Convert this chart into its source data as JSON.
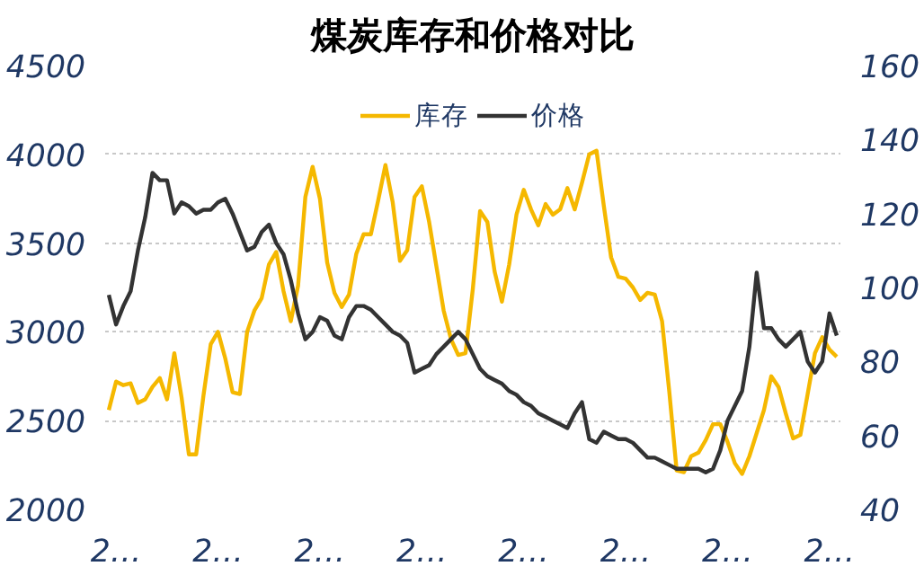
{
  "chart_data": {
    "type": "line",
    "title": "煤炭库存和价格对比",
    "categories": [
      null,
      "2…",
      null,
      null,
      null,
      null,
      null,
      null,
      null,
      null,
      null,
      null,
      null,
      null,
      null,
      "2…",
      null,
      null,
      null,
      null,
      null,
      null,
      null,
      null,
      null,
      null,
      null,
      null,
      null,
      "2…",
      null,
      null,
      null,
      null,
      null,
      null,
      null,
      null,
      null,
      null,
      null,
      null,
      null,
      "2…",
      null,
      null,
      null,
      null,
      null,
      null,
      null,
      null,
      null,
      null,
      null,
      null,
      null,
      "2…",
      null,
      null,
      null,
      null,
      null,
      null,
      null,
      null,
      null,
      null,
      null,
      null,
      null,
      "2…",
      null,
      null,
      null,
      null,
      null,
      null,
      null,
      null,
      null,
      null,
      null,
      null,
      null,
      "2…",
      null,
      null,
      null,
      null,
      null,
      null,
      null,
      null,
      null,
      null,
      null,
      null,
      null,
      "2…",
      null
    ],
    "ylim": [
      2000,
      4500
    ],
    "yticks": [
      2000,
      2500,
      3000,
      3500,
      4000,
      4500
    ],
    "y2lim": [
      40,
      160
    ],
    "y2ticks": [
      40,
      60,
      80,
      100,
      120,
      140,
      160
    ],
    "grid": "y",
    "legend": "top",
    "line_style": "solid",
    "series": [
      {
        "name": "库存",
        "color": "#f5b800",
        "values": [
          2560,
          2720,
          2700,
          2710,
          2600,
          2620,
          2690,
          2740,
          2620,
          2880,
          2630,
          2310,
          2310,
          2640,
          2930,
          3000,
          2850,
          2660,
          2650,
          3000,
          3120,
          3190,
          3380,
          3450,
          3230,
          3060,
          3260,
          3760,
          3930,
          3750,
          3390,
          3220,
          3140,
          3210,
          3440,
          3550,
          3550,
          3740,
          3940,
          3730,
          3400,
          3460,
          3760,
          3820,
          3620,
          3370,
          3120,
          2960,
          2870,
          2880,
          3240,
          3680,
          3620,
          3340,
          3170,
          3380,
          3660,
          3800,
          3690,
          3600,
          3720,
          3660,
          3690,
          3810,
          3690,
          3840,
          4000,
          4020,
          3710,
          3420,
          3310,
          3300,
          3250,
          3180,
          3220,
          3210,
          3060,
          2660,
          2220,
          2210,
          2300,
          2320,
          2390,
          2480,
          2480,
          2380,
          2260,
          2200,
          2300,
          2430,
          2560,
          2750,
          2690,
          2540,
          2400,
          2420,
          2650,
          2880,
          2970,
          2900,
          2860
        ]
      },
      {
        "name": "价格",
        "color": "#333333",
        "axis": "y2",
        "values": [
          98,
          90,
          95,
          99,
          110,
          119,
          131,
          129,
          129,
          120,
          123,
          122,
          120,
          121,
          121,
          123,
          124,
          120,
          115,
          110,
          111,
          115,
          117,
          112,
          109,
          102,
          93,
          86,
          88,
          92,
          91,
          87,
          86,
          92,
          95,
          95,
          94,
          92,
          90,
          88,
          87,
          85,
          77,
          78,
          79,
          82,
          84,
          86,
          88,
          86,
          82,
          78,
          76,
          75,
          74,
          72,
          71,
          69,
          68,
          66,
          65,
          64,
          63,
          62,
          66,
          69,
          59,
          58,
          61,
          60,
          59,
          59,
          58,
          56,
          54,
          54,
          53,
          52,
          51,
          51,
          51,
          51,
          50,
          51,
          56,
          64,
          68,
          72,
          84,
          104,
          89,
          89,
          86,
          84,
          86,
          88,
          80,
          77,
          80,
          93,
          87
        ]
      }
    ]
  }
}
